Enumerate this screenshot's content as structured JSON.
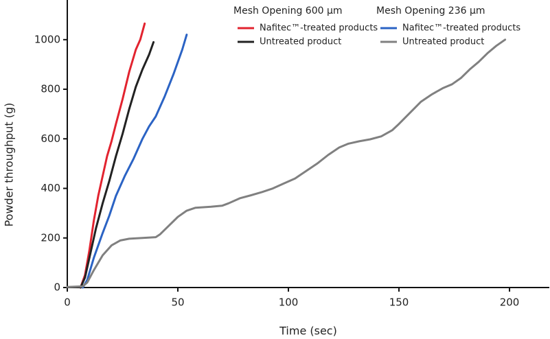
{
  "chart_data": {
    "type": "line",
    "x_label": "Time (sec)",
    "y_label": "Powder throughput (g)",
    "xlim": [
      0,
      218
    ],
    "xticks": [
      0,
      50,
      100,
      150,
      200
    ],
    "ylim": [
      0,
      1160
    ],
    "yticks": [
      0,
      200,
      400,
      600,
      800,
      1000
    ],
    "grid": false,
    "legend_titles": [
      "Mesh Opening 600 µm",
      "Mesh Opening 236 µm"
    ],
    "series": [
      {
        "name": "Nafitec™-treated products",
        "color": "#e2232f",
        "x": [
          6,
          8,
          10,
          12,
          14,
          16,
          18,
          20,
          22,
          25,
          28,
          31,
          33,
          35
        ],
        "values": [
          0,
          50,
          150,
          270,
          370,
          450,
          530,
          590,
          660,
          760,
          870,
          960,
          1000,
          1065
        ]
      },
      {
        "name": "Untreated product",
        "color": "#222222",
        "x": [
          6,
          8,
          10,
          13,
          16,
          19,
          22,
          25,
          28,
          31,
          34,
          37,
          39
        ],
        "values": [
          0,
          40,
          120,
          240,
          340,
          430,
          530,
          620,
          720,
          810,
          880,
          940,
          990
        ]
      },
      {
        "name": "Nafitec™-treated products",
        "color": "#2b63c4",
        "x": [
          7,
          9,
          12,
          16,
          19,
          22,
          26,
          30,
          34,
          37,
          40,
          44,
          48,
          52,
          54
        ],
        "values": [
          0,
          30,
          120,
          220,
          290,
          370,
          450,
          520,
          600,
          650,
          690,
          770,
          860,
          960,
          1020
        ]
      },
      {
        "name": "Untreated product",
        "color": "#808080",
        "x": [
          0,
          7,
          9,
          12,
          16,
          20,
          24,
          28,
          34,
          40,
          42,
          46,
          50,
          54,
          58,
          65,
          70,
          73,
          78,
          83,
          88,
          93,
          98,
          103,
          108,
          113,
          118,
          123,
          127,
          132,
          137,
          142,
          147,
          150,
          155,
          160,
          165,
          170,
          174,
          178,
          182,
          186,
          190,
          194,
          198
        ],
        "values": [
          2,
          5,
          20,
          70,
          130,
          170,
          190,
          197,
          200,
          203,
          215,
          250,
          285,
          310,
          322,
          326,
          330,
          340,
          360,
          372,
          385,
          400,
          420,
          440,
          470,
          500,
          535,
          565,
          580,
          590,
          598,
          610,
          635,
          660,
          705,
          750,
          780,
          805,
          820,
          845,
          880,
          910,
          945,
          975,
          1000
        ]
      }
    ]
  }
}
